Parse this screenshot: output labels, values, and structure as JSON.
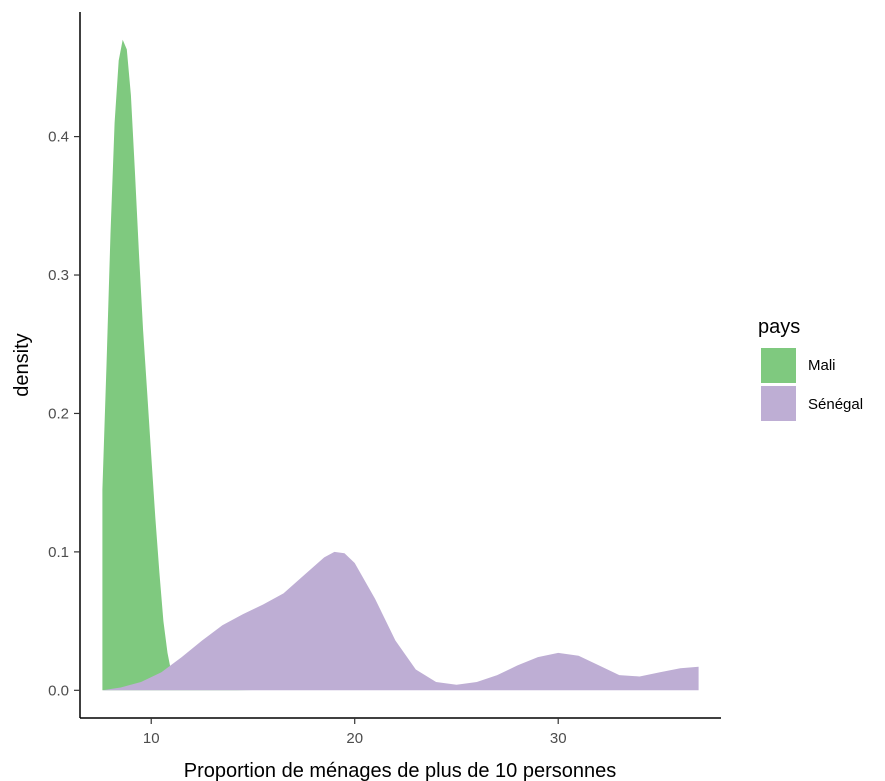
{
  "chart_data": {
    "type": "area",
    "subtype": "density",
    "title": "",
    "xlabel": "Proportion de ménages de plus de 10 personnes",
    "ylabel": "density",
    "xlim": [
      6.5,
      38
    ],
    "ylim": [
      -0.02,
      0.49
    ],
    "x_ticks": [
      10,
      20,
      30
    ],
    "y_ticks": [
      0.0,
      0.1,
      0.2,
      0.3,
      0.4
    ],
    "x_tick_labels": [
      "10",
      "20",
      "30"
    ],
    "y_tick_labels": [
      "0.0",
      "0.1",
      "0.2",
      "0.3",
      "0.4"
    ],
    "grid": false,
    "legend": {
      "title": "pays",
      "position": "right"
    },
    "series": [
      {
        "name": "Mali",
        "color": "#7fc97f",
        "x": [
          7.6,
          7.8,
          8.0,
          8.2,
          8.4,
          8.6,
          8.8,
          9.0,
          9.2,
          9.4,
          9.6,
          9.8,
          10.0,
          10.2,
          10.4,
          10.6,
          10.8,
          11.0,
          11.2,
          11.5,
          12.0,
          13.0,
          15.0,
          20.0,
          25.0,
          30.0,
          35.0,
          36.9
        ],
        "y": [
          0.145,
          0.235,
          0.33,
          0.41,
          0.455,
          0.47,
          0.463,
          0.43,
          0.375,
          0.315,
          0.26,
          0.215,
          0.17,
          0.125,
          0.085,
          0.05,
          0.027,
          0.012,
          0.005,
          0.002,
          0.001,
          0.0005,
          0.0,
          0.0,
          0.0,
          0.0,
          0.0,
          0.0
        ]
      },
      {
        "name": "Sénégal",
        "color": "#beaed4",
        "x": [
          7.6,
          8.5,
          9.5,
          10.5,
          11.5,
          12.5,
          13.5,
          14.5,
          15.5,
          16.5,
          17.5,
          18.5,
          19.0,
          19.5,
          20.0,
          21.0,
          22.0,
          23.0,
          24.0,
          25.0,
          26.0,
          27.0,
          28.0,
          29.0,
          30.0,
          31.0,
          32.0,
          33.0,
          34.0,
          35.0,
          36.0,
          36.9
        ],
        "y": [
          0.0,
          0.002,
          0.006,
          0.013,
          0.024,
          0.036,
          0.047,
          0.055,
          0.062,
          0.07,
          0.083,
          0.096,
          0.1,
          0.099,
          0.092,
          0.066,
          0.036,
          0.015,
          0.006,
          0.004,
          0.006,
          0.011,
          0.018,
          0.024,
          0.027,
          0.025,
          0.018,
          0.011,
          0.01,
          0.013,
          0.016,
          0.017
        ]
      }
    ]
  }
}
